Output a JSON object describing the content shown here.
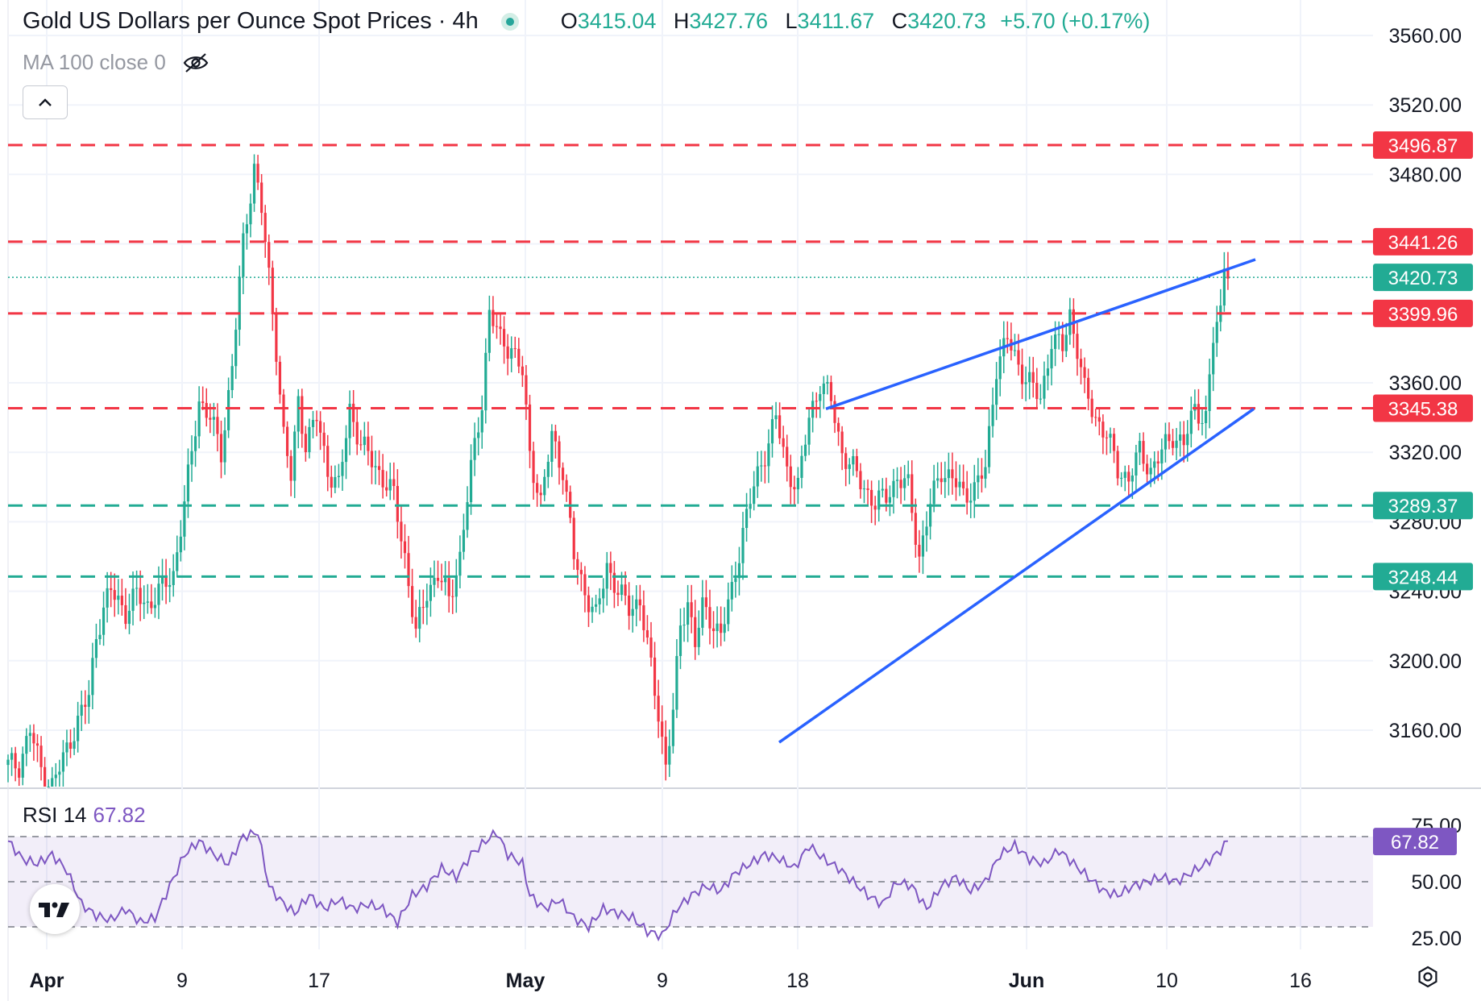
{
  "header": {
    "title": "Gold US Dollars per Ounce Spot Prices · 4h",
    "ohlc": [
      {
        "key": "O",
        "value": "3415.04"
      },
      {
        "key": "H",
        "value": "3427.76"
      },
      {
        "key": "L",
        "value": "3411.67"
      },
      {
        "key": "C",
        "value": "3420.73"
      },
      {
        "key": "",
        "value": "+5.70 (+0.17%)"
      }
    ],
    "indicator": "MA 100 close 0",
    "collapse_icon": "chevron-up-icon",
    "visibility_icon": "eye-off-icon"
  },
  "rsi_legend": {
    "label": "RSI 14",
    "value": "67.82"
  },
  "colors": {
    "up": "#22ab94",
    "down": "#f23645",
    "resistance": "#f23645",
    "support": "#22ab94",
    "trendline": "#2962ff",
    "rsi": "#7e57c2"
  },
  "chart_data": [
    {
      "type": "candlestick",
      "title": "Gold US Dollars per Ounce Spot Prices · 4h",
      "x_ticks": [
        "Apr",
        "9",
        "17",
        "May",
        "9",
        "18",
        "Jun",
        "10",
        "16"
      ],
      "y_ticks": [
        3160,
        3200,
        3240,
        3280,
        3320,
        3360,
        3400,
        3440,
        3480,
        3520,
        3560
      ],
      "ylim": [
        3120,
        3580
      ],
      "last_price": 3420.73,
      "horizontal_levels": [
        {
          "value": 3496.87,
          "label": "3496.87",
          "kind": "resistance"
        },
        {
          "value": 3441.26,
          "label": "3441.26",
          "kind": "resistance"
        },
        {
          "value": 3399.96,
          "label": "3399.96",
          "kind": "resistance"
        },
        {
          "value": 3345.38,
          "label": "3345.38",
          "kind": "resistance"
        },
        {
          "value": 3289.37,
          "label": "3289.37",
          "kind": "support"
        },
        {
          "value": 3248.44,
          "label": "3248.44",
          "kind": "support"
        }
      ],
      "trendlines": [
        {
          "name": "upper",
          "from": {
            "x": "May 19",
            "y": 3345
          },
          "to": {
            "x": "Jun 13",
            "y": 3431
          }
        },
        {
          "name": "lower",
          "from": {
            "x": "May 16",
            "y": 3153
          },
          "to": {
            "x": "Jun 13",
            "y": 3345
          }
        }
      ],
      "close_path": [
        [
          0,
          3140
        ],
        [
          3,
          3140
        ],
        [
          6,
          3160
        ],
        [
          8,
          3145
        ],
        [
          10,
          3130
        ],
        [
          12,
          3128
        ],
        [
          14,
          3138
        ],
        [
          17,
          3155
        ],
        [
          20,
          3170
        ],
        [
          22,
          3180
        ],
        [
          24,
          3215
        ],
        [
          26,
          3230
        ],
        [
          28,
          3240
        ],
        [
          30,
          3235
        ],
        [
          32,
          3228
        ],
        [
          35,
          3238
        ],
        [
          38,
          3232
        ],
        [
          42,
          3242
        ],
        [
          45,
          3250
        ],
        [
          48,
          3290
        ],
        [
          52,
          3350
        ],
        [
          55,
          3340
        ],
        [
          58,
          3320
        ],
        [
          61,
          3370
        ],
        [
          64,
          3440
        ],
        [
          66,
          3470
        ],
        [
          67,
          3485
        ],
        [
          69,
          3460
        ],
        [
          71,
          3420
        ],
        [
          73,
          3380
        ],
        [
          75,
          3330
        ],
        [
          77,
          3305
        ],
        [
          79,
          3350
        ],
        [
          81,
          3325
        ],
        [
          84,
          3340
        ],
        [
          87,
          3310
        ],
        [
          90,
          3300
        ],
        [
          93,
          3345
        ],
        [
          96,
          3325
        ],
        [
          99,
          3315
        ],
        [
          102,
          3305
        ],
        [
          105,
          3295
        ],
        [
          108,
          3260
        ],
        [
          111,
          3215
        ],
        [
          114,
          3240
        ],
        [
          117,
          3250
        ],
        [
          120,
          3235
        ],
        [
          123,
          3260
        ],
        [
          126,
          3310
        ],
        [
          129,
          3350
        ],
        [
          131,
          3400
        ],
        [
          134,
          3385
        ],
        [
          137,
          3380
        ],
        [
          140,
          3365
        ],
        [
          142,
          3320
        ],
        [
          145,
          3290
        ],
        [
          148,
          3330
        ],
        [
          151,
          3310
        ],
        [
          154,
          3260
        ],
        [
          157,
          3240
        ],
        [
          160,
          3225
        ],
        [
          163,
          3255
        ],
        [
          166,
          3240
        ],
        [
          169,
          3230
        ],
        [
          172,
          3235
        ],
        [
          175,
          3195
        ],
        [
          177,
          3170
        ],
        [
          179,
          3140
        ],
        [
          181,
          3170
        ],
        [
          183,
          3220
        ],
        [
          185,
          3235
        ],
        [
          187,
          3210
        ],
        [
          189,
          3230
        ],
        [
          191,
          3225
        ],
        [
          194,
          3215
        ],
        [
          197,
          3240
        ],
        [
          200,
          3275
        ],
        [
          203,
          3300
        ],
        [
          206,
          3320
        ],
        [
          209,
          3340
        ],
        [
          212,
          3310
        ],
        [
          215,
          3300
        ],
        [
          218,
          3340
        ],
        [
          221,
          3360
        ],
        [
          224,
          3350
        ],
        [
          227,
          3320
        ],
        [
          230,
          3310
        ],
        [
          233,
          3300
        ],
        [
          236,
          3290
        ],
        [
          239,
          3295
        ],
        [
          242,
          3305
        ],
        [
          245,
          3300
        ],
        [
          248,
          3260
        ],
        [
          251,
          3290
        ],
        [
          254,
          3310
        ],
        [
          257,
          3305
        ],
        [
          260,
          3295
        ],
        [
          263,
          3300
        ],
        [
          266,
          3310
        ],
        [
          269,
          3370
        ],
        [
          272,
          3385
        ],
        [
          275,
          3370
        ],
        [
          278,
          3360
        ],
        [
          281,
          3350
        ],
        [
          284,
          3385
        ],
        [
          287,
          3380
        ],
        [
          289,
          3400
        ],
        [
          291,
          3380
        ],
        [
          293,
          3355
        ],
        [
          296,
          3340
        ],
        [
          299,
          3330
        ],
        [
          302,
          3310
        ],
        [
          305,
          3305
        ],
        [
          308,
          3320
        ],
        [
          311,
          3310
        ],
        [
          314,
          3320
        ],
        [
          317,
          3330
        ],
        [
          320,
          3325
        ],
        [
          323,
          3345
        ],
        [
          326,
          3340
        ],
        [
          328,
          3385
        ],
        [
          330,
          3400
        ],
        [
          331,
          3430
        ],
        [
          332,
          3420
        ]
      ],
      "rsi": {
        "name": "RSI 14",
        "value": 67.82,
        "levels": [
          70,
          50,
          30
        ],
        "y_ticks": [
          "75.00",
          "50.00",
          "25.00"
        ],
        "path": [
          [
            0,
            68
          ],
          [
            4,
            60
          ],
          [
            8,
            58
          ],
          [
            12,
            62
          ],
          [
            16,
            55
          ],
          [
            20,
            40
          ],
          [
            24,
            35
          ],
          [
            28,
            33
          ],
          [
            32,
            38
          ],
          [
            36,
            32
          ],
          [
            40,
            34
          ],
          [
            44,
            48
          ],
          [
            48,
            62
          ],
          [
            52,
            68
          ],
          [
            56,
            62
          ],
          [
            60,
            58
          ],
          [
            64,
            70
          ],
          [
            68,
            72
          ],
          [
            71,
            48
          ],
          [
            74,
            42
          ],
          [
            78,
            36
          ],
          [
            82,
            44
          ],
          [
            86,
            38
          ],
          [
            90,
            42
          ],
          [
            94,
            38
          ],
          [
            98,
            40
          ],
          [
            102,
            38
          ],
          [
            106,
            32
          ],
          [
            110,
            44
          ],
          [
            114,
            48
          ],
          [
            118,
            56
          ],
          [
            122,
            52
          ],
          [
            126,
            62
          ],
          [
            130,
            68
          ],
          [
            133,
            72
          ],
          [
            136,
            62
          ],
          [
            140,
            58
          ],
          [
            142,
            44
          ],
          [
            146,
            38
          ],
          [
            150,
            42
          ],
          [
            154,
            34
          ],
          [
            158,
            30
          ],
          [
            162,
            38
          ],
          [
            166,
            36
          ],
          [
            170,
            34
          ],
          [
            174,
            28
          ],
          [
            178,
            26
          ],
          [
            182,
            38
          ],
          [
            186,
            44
          ],
          [
            190,
            48
          ],
          [
            194,
            46
          ],
          [
            198,
            54
          ],
          [
            202,
            58
          ],
          [
            206,
            62
          ],
          [
            210,
            60
          ],
          [
            214,
            56
          ],
          [
            218,
            66
          ],
          [
            222,
            60
          ],
          [
            226,
            56
          ],
          [
            230,
            50
          ],
          [
            234,
            44
          ],
          [
            238,
            40
          ],
          [
            242,
            50
          ],
          [
            246,
            48
          ],
          [
            250,
            38
          ],
          [
            254,
            48
          ],
          [
            258,
            52
          ],
          [
            262,
            46
          ],
          [
            266,
            50
          ],
          [
            270,
            62
          ],
          [
            274,
            66
          ],
          [
            278,
            60
          ],
          [
            282,
            58
          ],
          [
            286,
            64
          ],
          [
            290,
            58
          ],
          [
            294,
            52
          ],
          [
            298,
            46
          ],
          [
            302,
            44
          ],
          [
            306,
            48
          ],
          [
            310,
            50
          ],
          [
            314,
            52
          ],
          [
            318,
            50
          ],
          [
            322,
            54
          ],
          [
            326,
            58
          ],
          [
            330,
            64
          ],
          [
            332,
            68
          ]
        ]
      }
    }
  ]
}
